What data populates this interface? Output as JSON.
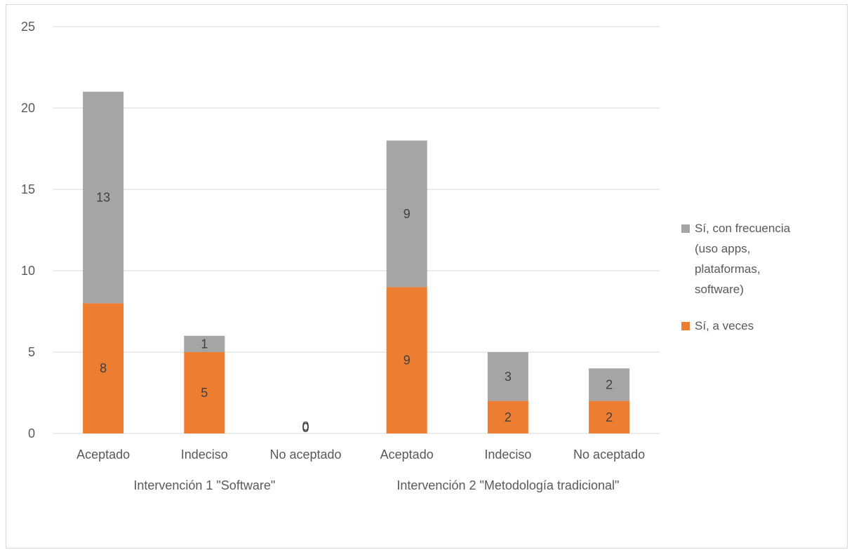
{
  "chart_data": {
    "type": "bar",
    "stacked": true,
    "title": "",
    "xlabel": "",
    "ylabel": "",
    "ylim": [
      0,
      25
    ],
    "yticks": [
      "0",
      "5",
      "10",
      "15",
      "20",
      "25"
    ],
    "grid": true,
    "legend_position": "right",
    "groups": [
      {
        "label": "Intervención 1 \"Software\"",
        "categories": [
          "Aceptado",
          "Indeciso",
          "No aceptado"
        ]
      },
      {
        "label": "Intervención 2 \"Metodología tradicional\"",
        "categories": [
          "Aceptado",
          "Indeciso",
          "No aceptado"
        ]
      }
    ],
    "series": [
      {
        "name": "Sí, a veces",
        "color": "#ED7D31",
        "values": [
          8,
          5,
          0,
          9,
          2,
          2
        ]
      },
      {
        "name": "Sí, con frecuencia (uso apps, plataformas, software)",
        "color": "#A5A5A5",
        "values": [
          13,
          1,
          0,
          9,
          3,
          2
        ]
      }
    ],
    "legend": {
      "entries": [
        {
          "lines": [
            "Sí, con frecuencia",
            "(uso apps,",
            "plataformas,",
            "software)"
          ],
          "color": "#A5A5A5"
        },
        {
          "lines": [
            "Sí, a veces"
          ],
          "color": "#ED7D31"
        }
      ]
    }
  }
}
